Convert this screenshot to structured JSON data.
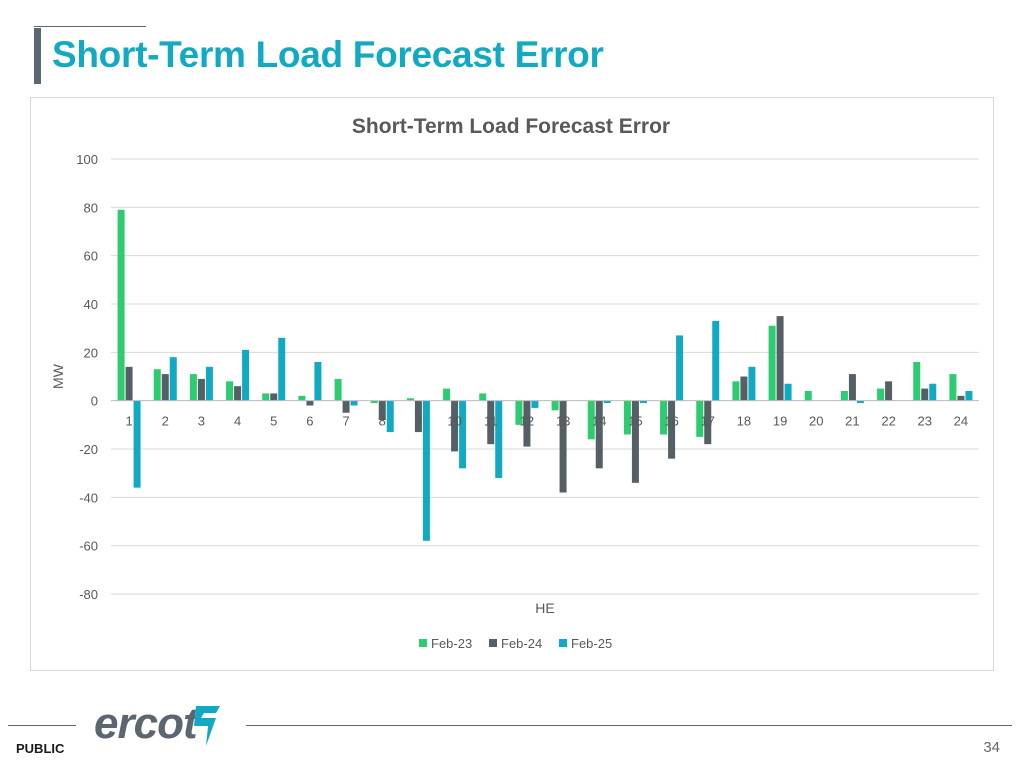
{
  "slide": {
    "title": "Short-Term Load Forecast Error",
    "footer_label": "PUBLIC",
    "page_number": "34",
    "logo_text": "ercot"
  },
  "colors": {
    "title": "#12a9c3",
    "accent_bar": "#5b6670",
    "logo_teal": "#12a9c3"
  },
  "chart_data": {
    "type": "bar",
    "title": "Short-Term Load Forecast Error",
    "xlabel": "HE",
    "ylabel": "MW",
    "ylim": [
      -80,
      100
    ],
    "yticks": [
      100,
      80,
      60,
      40,
      20,
      0,
      -20,
      -40,
      -60,
      -80
    ],
    "grid": true,
    "legend_position": "bottom",
    "categories": [
      "1",
      "2",
      "3",
      "4",
      "5",
      "6",
      "7",
      "8",
      "9",
      "10",
      "11",
      "12",
      "13",
      "14",
      "15",
      "16",
      "17",
      "18",
      "19",
      "20",
      "21",
      "22",
      "23",
      "24"
    ],
    "series": [
      {
        "name": "Feb-23",
        "color": "#2ecc71",
        "values": [
          79,
          13,
          11,
          8,
          3,
          2,
          9,
          -1,
          1,
          5,
          3,
          -10,
          -4,
          -16,
          -14,
          -14,
          -15,
          8,
          31,
          4,
          4,
          5,
          16,
          11
        ]
      },
      {
        "name": "Feb-24",
        "color": "#555f66",
        "values": [
          14,
          11,
          9,
          6,
          3,
          -2,
          -5,
          -8,
          -13,
          -21,
          -18,
          -19,
          -38,
          -28,
          -34,
          -24,
          -18,
          10,
          35,
          0,
          11,
          8,
          5,
          2
        ]
      },
      {
        "name": "Feb-25",
        "color": "#12a9c3",
        "values": [
          -36,
          18,
          14,
          21,
          26,
          16,
          -2,
          -13,
          -58,
          -28,
          -32,
          -3,
          0,
          -1,
          -1,
          27,
          33,
          14,
          7,
          0,
          -1,
          0,
          7,
          4
        ]
      }
    ]
  }
}
